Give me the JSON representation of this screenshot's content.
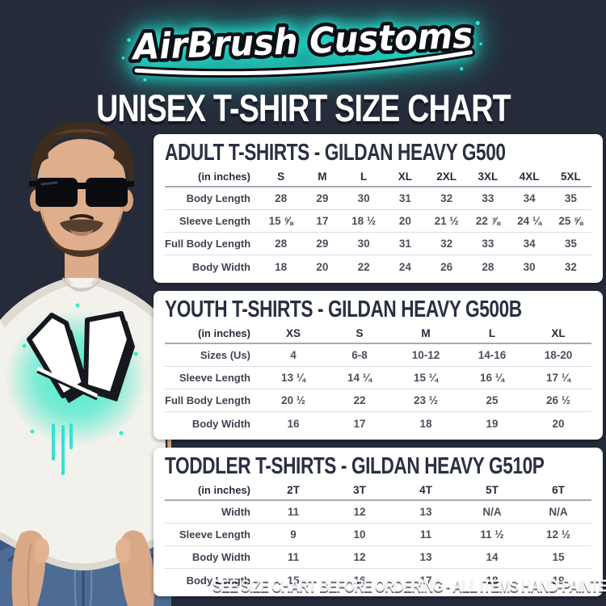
{
  "brand": {
    "logo_text": "AirBrush Customs"
  },
  "page_title": "UNISEX T-SHIRT SIZE CHART",
  "footer_note": "SEE SIZE CHART BEFORE ORDERING - ALL ITEMS HAND-PAINTED TO ORDER",
  "colors": {
    "background": "#262b3a",
    "panel": "#ffffff",
    "heading_text": "#2a3040",
    "body_text": "#4a505b",
    "accent_teal": "#2ee6d4",
    "logo_glow": "#27e3d1"
  },
  "photo": {
    "shirt_graffiti_letters": "AC"
  },
  "tables": [
    {
      "title": "ADULT T-SHIRTS - GILDAN HEAVY G500",
      "unit_label": "(in inches)",
      "columns": [
        "S",
        "M",
        "L",
        "XL",
        "2XL",
        "3XL",
        "4XL",
        "5XL"
      ],
      "rows": [
        {
          "label": "Body Length",
          "values": [
            "28",
            "29",
            "30",
            "31",
            "32",
            "33",
            "34",
            "35"
          ]
        },
        {
          "label": "Sleeve Length",
          "values": [
            "15 ⅝",
            "17",
            "18 ½",
            "20",
            "21 ½",
            "22 ⅞",
            "24 ¼",
            "25 ⅝"
          ]
        },
        {
          "label": "Full Body Length",
          "values": [
            "28",
            "29",
            "30",
            "31",
            "32",
            "33",
            "34",
            "35"
          ]
        },
        {
          "label": "Body Width",
          "values": [
            "18",
            "20",
            "22",
            "24",
            "26",
            "28",
            "30",
            "32"
          ]
        }
      ]
    },
    {
      "title": "YOUTH T-SHIRTS - GILDAN HEAVY G500B",
      "unit_label": "(in inches)",
      "columns": [
        "XS",
        "S",
        "M",
        "L",
        "XL"
      ],
      "rows": [
        {
          "label": "Sizes (Us)",
          "values": [
            "4",
            "6-8",
            "10-12",
            "14-16",
            "18-20"
          ]
        },
        {
          "label": "Sleeve Length",
          "values": [
            "13 ¼",
            "14 ¼",
            "15 ¼",
            "16 ¼",
            "17 ¼"
          ]
        },
        {
          "label": "Full Body Length",
          "values": [
            "20 ½",
            "22",
            "23 ½",
            "25",
            "26 ½"
          ]
        },
        {
          "label": "Body Width",
          "values": [
            "16",
            "17",
            "18",
            "19",
            "20"
          ]
        }
      ]
    },
    {
      "title": "TODDLER T-SHIRTS - GILDAN HEAVY G510P",
      "unit_label": "(in inches)",
      "columns": [
        "2T",
        "3T",
        "4T",
        "5T",
        "6T"
      ],
      "rows": [
        {
          "label": "Width",
          "values": [
            "11",
            "12",
            "13",
            "N/A",
            "N/A"
          ]
        },
        {
          "label": "Sleeve Length",
          "values": [
            "9",
            "10",
            "11",
            "11 ½",
            "12 ½"
          ]
        },
        {
          "label": "Body Width",
          "values": [
            "11",
            "12",
            "13",
            "14",
            "15"
          ]
        },
        {
          "label": "Body Length",
          "values": [
            "15",
            "16",
            "17",
            "18",
            "19"
          ]
        }
      ]
    }
  ]
}
